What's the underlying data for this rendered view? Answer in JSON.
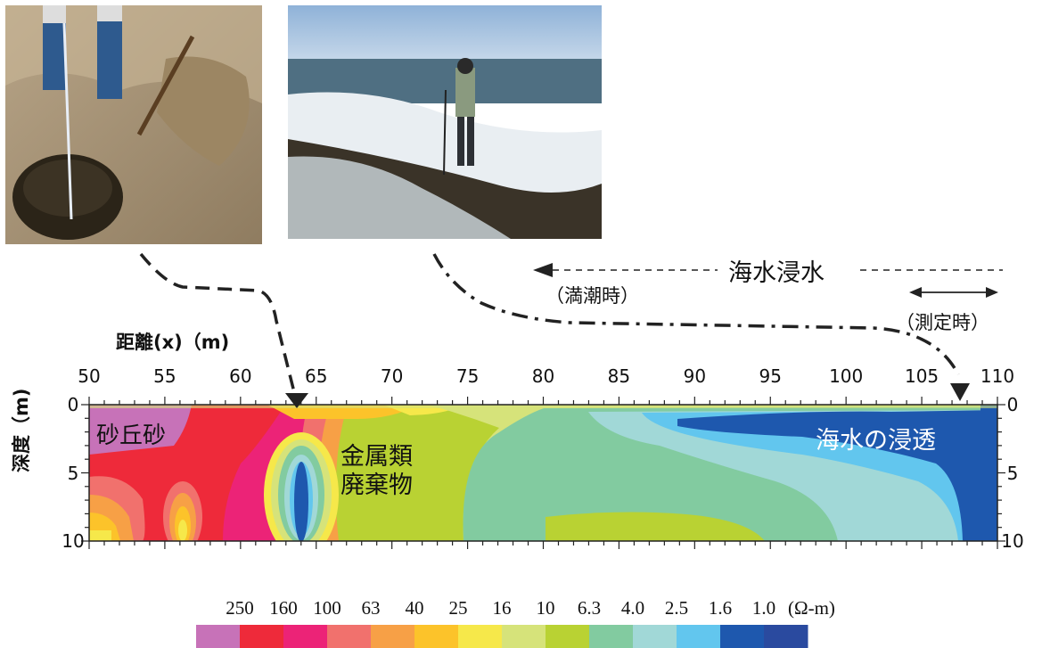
{
  "photos": [
    {
      "name": "sand-pit-photo",
      "alt": ""
    },
    {
      "name": "seawater-photo",
      "alt": ""
    }
  ],
  "annotations": {
    "seawater_intrusion": "海水浸水",
    "high_tide": "（満潮時）",
    "measurement_time": "（測定時）",
    "dune_sand": "砂丘砂",
    "metal_waste_line1": "金属類",
    "metal_waste_line2": "廃棄物",
    "seawater_infiltration": "海水の浸透"
  },
  "chart_data": {
    "type": "heatmap",
    "xlabel": "距離(x)（m)",
    "ylabel": "深度（m)",
    "x_ticks": [
      "50",
      "55",
      "60",
      "65",
      "70",
      "75",
      "80",
      "85",
      "90",
      "95",
      "100",
      "105",
      "110"
    ],
    "y_ticks": [
      "0",
      "5",
      "10"
    ],
    "xlim": [
      50,
      110
    ],
    "ylim": [
      0,
      10
    ],
    "legend": {
      "values": [
        "250",
        "160",
        "100",
        "63",
        "40",
        "25",
        "16",
        "10",
        "6.3",
        "4.0",
        "2.5",
        "1.6",
        "1.0"
      ],
      "unit": "(Ω-m)",
      "colors": [
        "#c772b8",
        "#ee2a3a",
        "#ec2377",
        "#f1716d",
        "#f7a046",
        "#fcc32a",
        "#f6e84a",
        "#d6e37a",
        "#b9d233",
        "#82cba0",
        "#a1d8d7",
        "#62c6ee",
        "#1e58ae",
        "#2a4a9f"
      ]
    }
  }
}
